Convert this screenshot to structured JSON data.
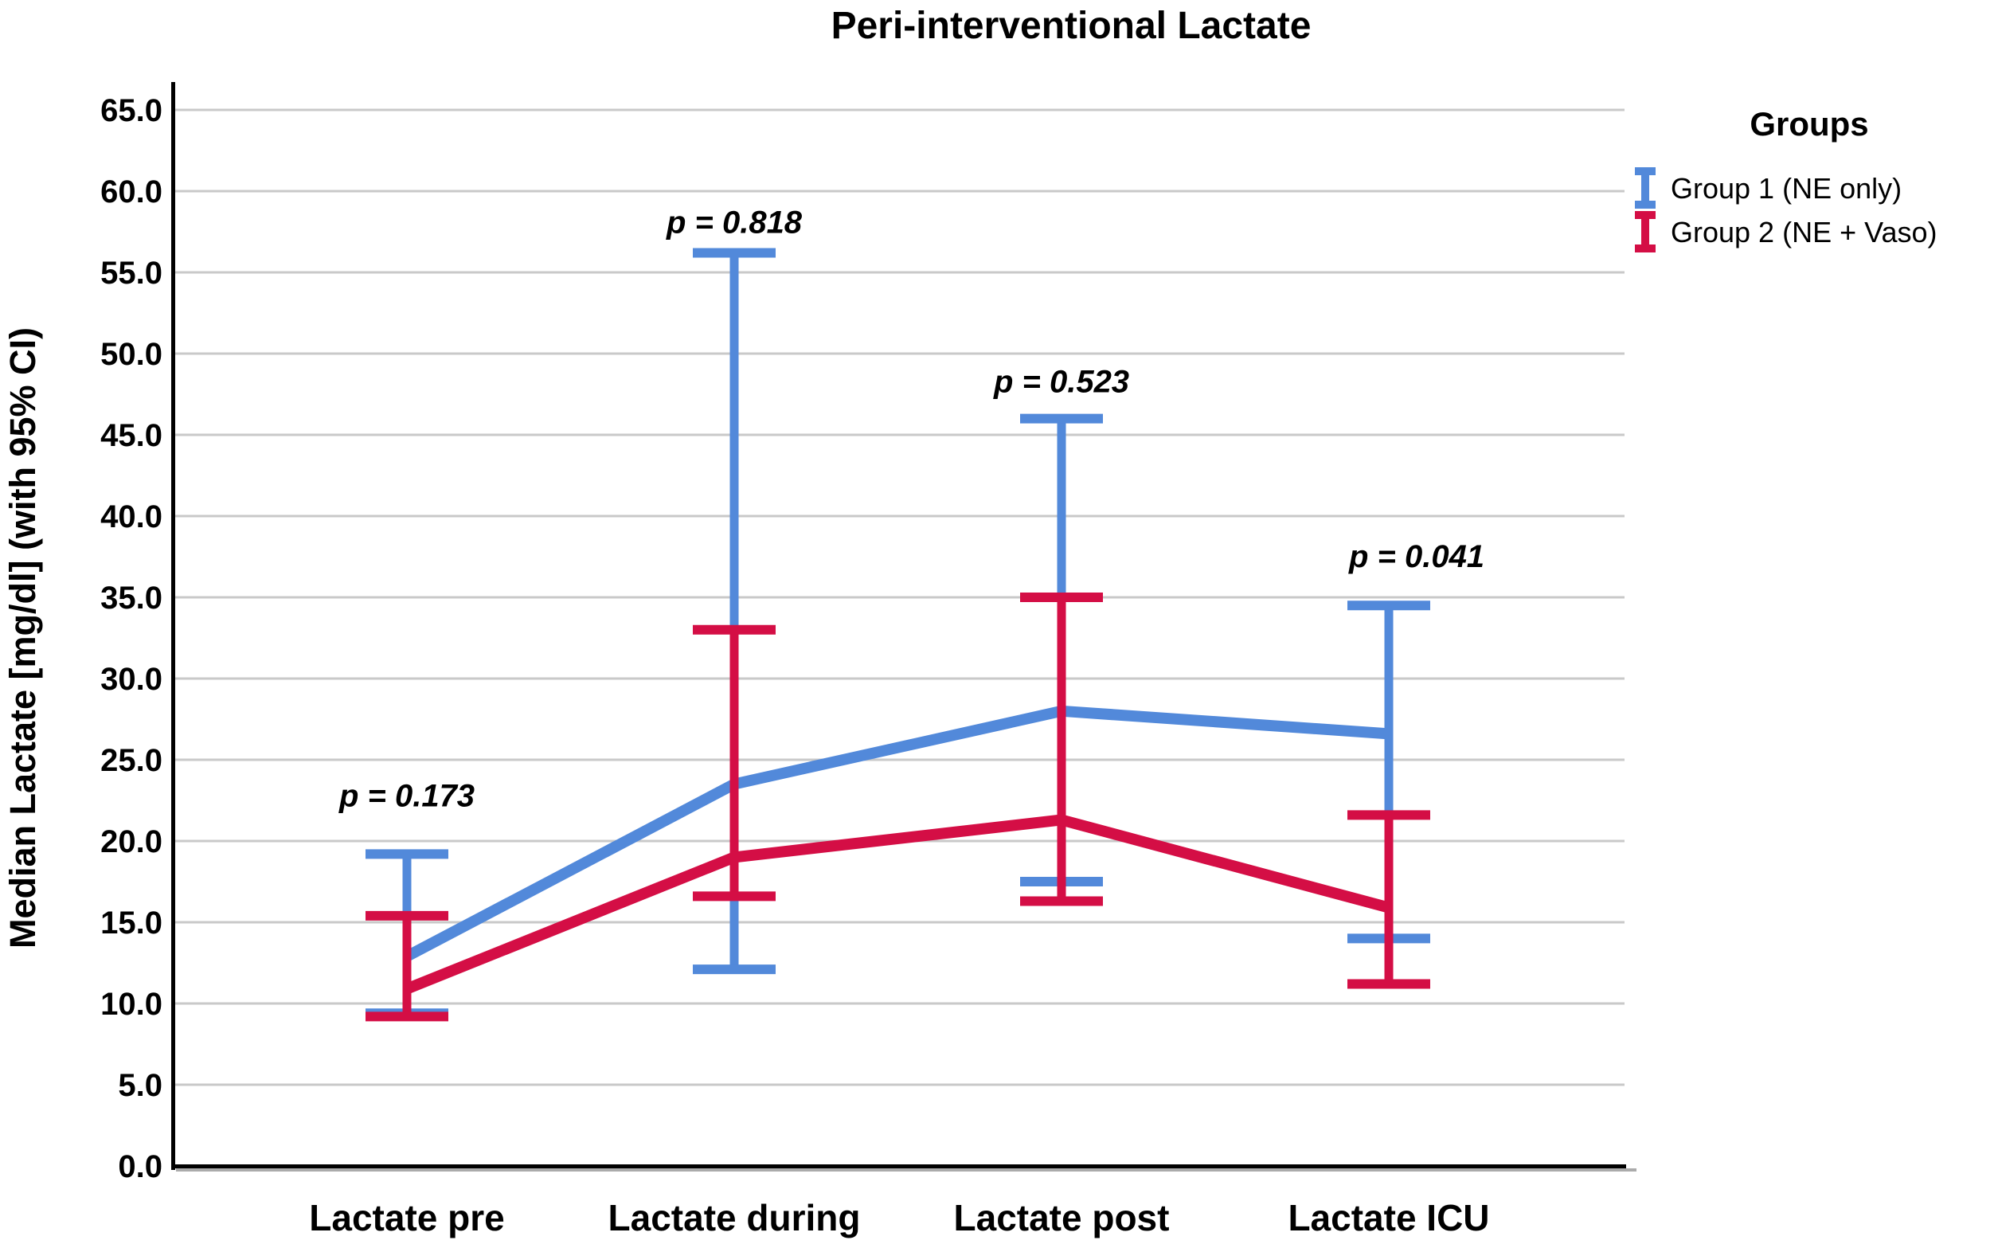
{
  "chart_data": {
    "type": "line",
    "title": "Peri-interventional Lactate",
    "xlabel": "",
    "ylabel": "Median Lactate [mg/dl] (with 95% CI)",
    "ylim": [
      0,
      65
    ],
    "ytick_step": 5,
    "ytick_labels": [
      "0.0",
      "5.0",
      "10.0",
      "15.0",
      "20.0",
      "25.0",
      "30.0",
      "35.0",
      "40.0",
      "45.0",
      "50.0",
      "55.0",
      "60.0",
      "65.0"
    ],
    "grid": true,
    "categories": [
      "Lactate pre",
      "Lactate during",
      "Lactate post",
      "Lactate ICU"
    ],
    "series": [
      {
        "name": "Group 1 (NE only)",
        "color": "#5289DA",
        "marker": "error-bar",
        "values": [
          12.9,
          23.5,
          28.0,
          26.6
        ],
        "ci_low": [
          9.4,
          12.1,
          17.5,
          14.0
        ],
        "ci_high": [
          19.2,
          56.2,
          46.0,
          34.5
        ]
      },
      {
        "name": "Group 2 (NE + Vaso)",
        "color": "#D40E45",
        "marker": "error-bar",
        "values": [
          10.9,
          19.0,
          21.3,
          15.9
        ],
        "ci_low": [
          9.2,
          16.6,
          16.3,
          11.2
        ],
        "ci_high": [
          15.4,
          33.0,
          35.0,
          21.6
        ]
      }
    ],
    "annotations": [
      {
        "text": "p = 0.173",
        "category": 0
      },
      {
        "text": "p = 0.818",
        "category": 1
      },
      {
        "text": "p = 0.523",
        "category": 2
      },
      {
        "text": "p = 0.041",
        "category": 3
      }
    ],
    "legend": {
      "title": "Groups",
      "position": "right"
    },
    "colors": {
      "gridline": "#C9C9C9",
      "axis": "#000000",
      "axis_shadow": "#ABABAB",
      "background": "#FFFFFF"
    }
  }
}
